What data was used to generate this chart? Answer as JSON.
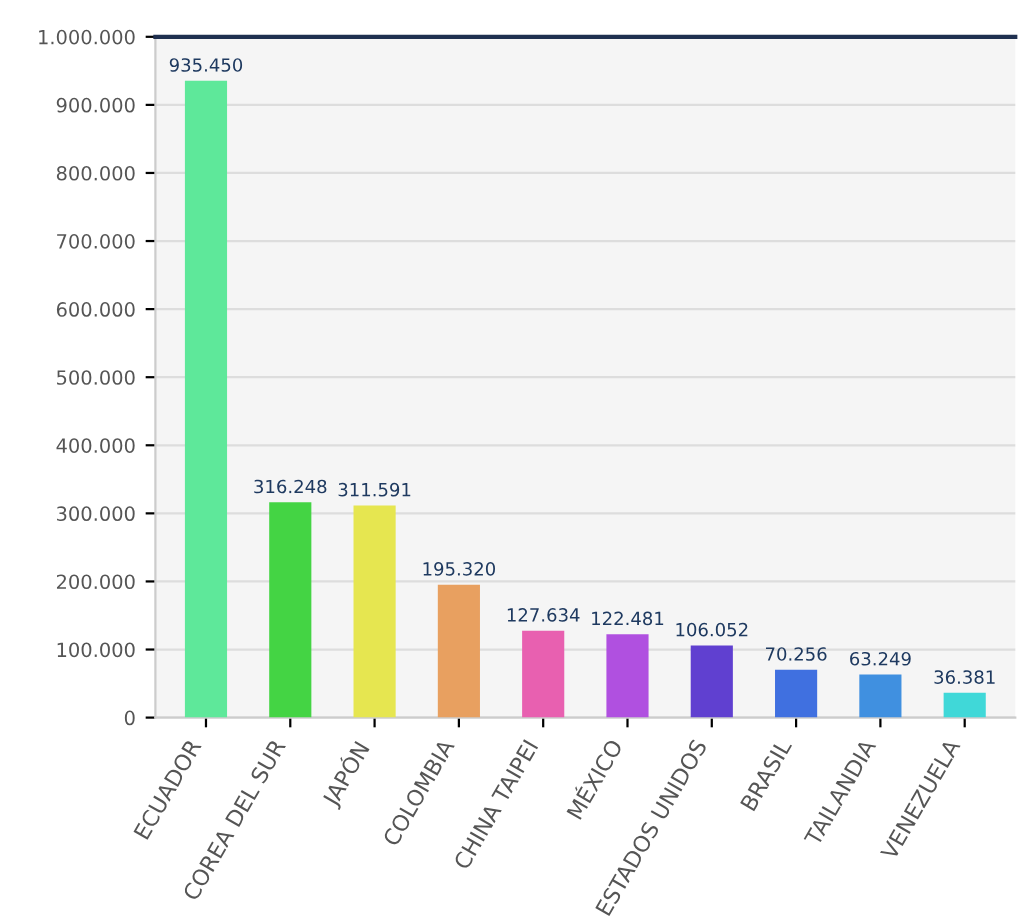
{
  "chart_data": {
    "type": "bar",
    "categories": [
      "ECUADOR",
      "COREA DEL SUR",
      "JAPÓN",
      "COLOMBIA",
      "CHINA TAIPEI",
      "MÉXICO",
      "ESTADOS UNIDOS",
      "BRASIL",
      "TAILANDIA",
      "VENEZUELA"
    ],
    "values": [
      935450,
      316248,
      311591,
      195320,
      127634,
      122481,
      106052,
      70256,
      63249,
      36381
    ],
    "value_labels": [
      "935.450",
      "316.248",
      "311.591",
      "195.320",
      "127.634",
      "122.481",
      "106.052",
      "70.256",
      "63.249",
      "36.381"
    ],
    "colors": [
      "#5ee89a",
      "#44d444",
      "#e6e650",
      "#e8a060",
      "#e860b0",
      "#b050e0",
      "#6040d0",
      "#4070e0",
      "#4090e0",
      "#40d8d8"
    ],
    "ylim": [
      0,
      1000000
    ],
    "yticks": [
      {
        "value": 0,
        "label": "0"
      },
      {
        "value": 100000,
        "label": "100.000"
      },
      {
        "value": 200000,
        "label": "200.000"
      },
      {
        "value": 300000,
        "label": "300.000"
      },
      {
        "value": 400000,
        "label": "400.000"
      },
      {
        "value": 500000,
        "label": "500.000"
      },
      {
        "value": 600000,
        "label": "600.000"
      },
      {
        "value": 700000,
        "label": "700.000"
      },
      {
        "value": 800000,
        "label": "800.000"
      },
      {
        "value": 900000,
        "label": "900.000"
      },
      {
        "value": 1000000,
        "label": "1.000.000"
      }
    ],
    "ref_lines": [
      {
        "axis": "y",
        "value": 1000000,
        "color": "#1f3050"
      }
    ],
    "grid": "y"
  }
}
